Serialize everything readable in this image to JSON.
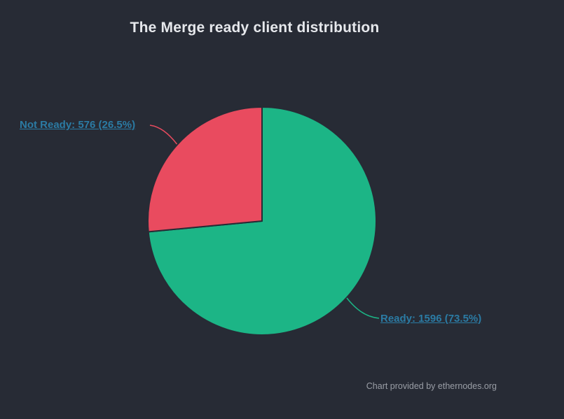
{
  "page": {
    "background": "#272b35",
    "title": "The Merge ready client distribution",
    "title_color": "#e6e8ec",
    "credits": "Chart provided by ethernodes.org",
    "credits_color": "#9a9ea6",
    "label_link_color": "#2b7ba4"
  },
  "chart_data": {
    "type": "pie",
    "title": "The Merge ready client distribution",
    "legend": "none",
    "start_angle": "top",
    "direction": "clockwise",
    "slices": [
      {
        "name": "Ready",
        "value": 1596,
        "percent": 73.5,
        "color": "#1cb586",
        "label_text": "Ready: 1596 (73.5%)"
      },
      {
        "name": "Not Ready",
        "value": 576,
        "percent": 26.5,
        "color": "#e94b5f",
        "label_text": "Not Ready: 576 (26.5%)"
      }
    ],
    "credits": "Chart provided by ethernodes.org"
  }
}
